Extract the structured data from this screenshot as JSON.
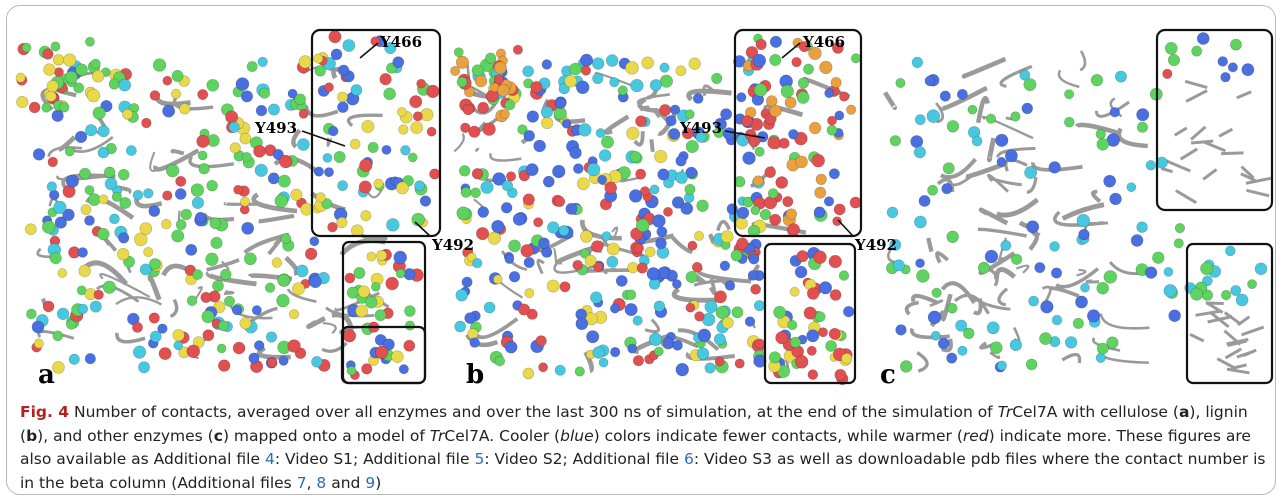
{
  "figure": {
    "panels": [
      {
        "label": "a",
        "annotations": [
          "Y466",
          "Y493",
          "Y492"
        ]
      },
      {
        "label": "b",
        "annotations": [
          "Y466",
          "Y493",
          "Y492"
        ]
      },
      {
        "label": "c"
      }
    ],
    "caption": {
      "runs": [
        "Fig. 4",
        " Number of contacts, averaged over all enzymes and over the last 300 ns of simulation, at the end of the simulation of ",
        "Tr",
        "Cel7A with cellulose (",
        "a",
        "), lignin (",
        "b",
        "), and other enzymes (",
        "c",
        ") mapped onto a model of ",
        "Tr",
        "Cel7A. Cooler (",
        "blue",
        ") colors indicate fewer contacts, while warmer (",
        "red",
        ") indicate more. These figures are also available as Additional file ",
        "4",
        ": Video S1; Additional file ",
        "5",
        ": Video S2; Additional file ",
        "6",
        ": Video S3 as well as downloadable pdb files where the contact number is in the beta column (Additional files ",
        "7",
        ", ",
        "8",
        " and ",
        "9",
        ")"
      ]
    }
  }
}
